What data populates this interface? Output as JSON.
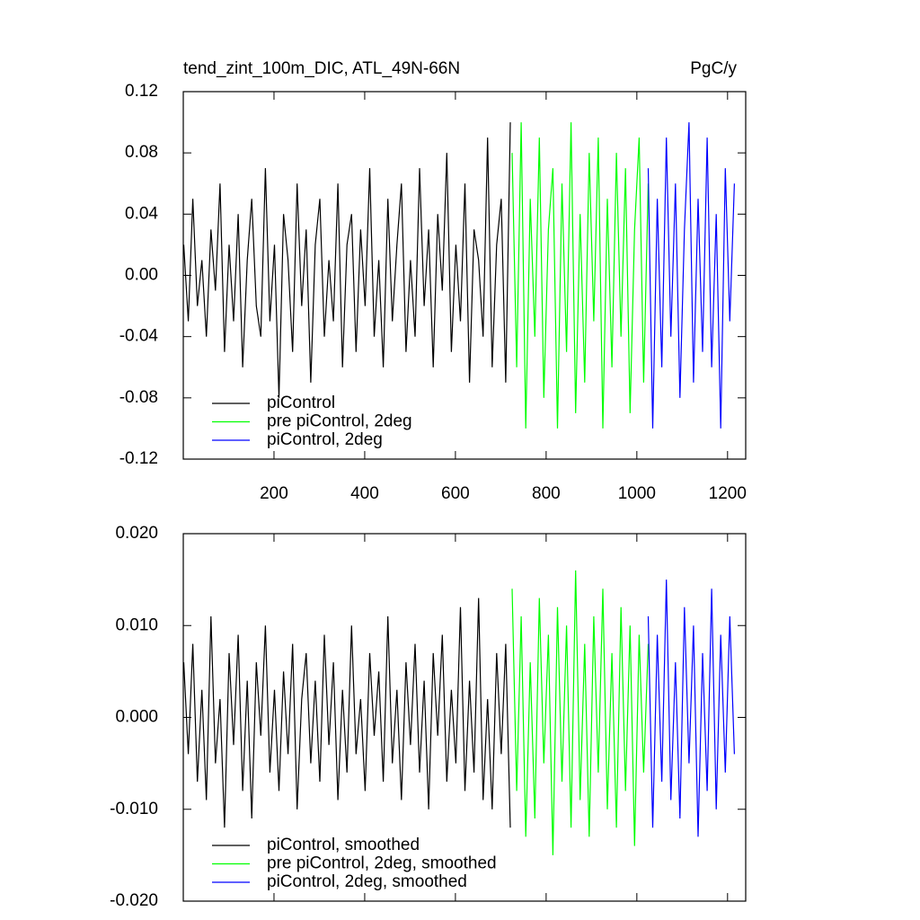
{
  "chart_data": [
    {
      "type": "line",
      "title": "tend_zint_100m_DIC, ATL_49N-66N",
      "unit_label": "PgC/y",
      "xlim": [
        0,
        1240
      ],
      "ylim": [
        -0.12,
        0.12
      ],
      "xticks": [
        200,
        400,
        600,
        800,
        1000,
        1200
      ],
      "xtick_labels": true,
      "yticks": [
        -0.12,
        -0.08,
        -0.04,
        {
          "value": 0,
          "label": "0.00"
        },
        0.04,
        0.08,
        0.12
      ],
      "legend": "lower left",
      "series": [
        {
          "name": "piControl",
          "color": "#000000",
          "x": [
            1,
            11,
            21,
            31,
            41,
            51,
            61,
            71,
            81,
            91,
            101,
            111,
            121,
            131,
            141,
            151,
            161,
            171,
            181,
            191,
            201,
            211,
            221,
            231,
            241,
            251,
            261,
            271,
            281,
            291,
            301,
            311,
            321,
            331,
            341,
            351,
            361,
            371,
            381,
            391,
            401,
            411,
            421,
            431,
            441,
            451,
            461,
            471,
            481,
            491,
            501,
            511,
            521,
            531,
            541,
            551,
            561,
            571,
            581,
            591,
            601,
            611,
            621,
            631,
            641,
            651,
            661,
            671,
            681,
            691,
            701,
            711,
            721
          ],
          "values": [
            0.02,
            -0.03,
            0.05,
            -0.02,
            0.01,
            -0.04,
            0.03,
            -0.01,
            0.06,
            -0.05,
            0.02,
            -0.03,
            0.04,
            -0.06,
            0.01,
            0.05,
            -0.02,
            -0.04,
            0.07,
            -0.03,
            0.02,
            -0.08,
            0.04,
            0.01,
            -0.05,
            0.06,
            -0.02,
            0.03,
            -0.07,
            0.02,
            0.05,
            -0.04,
            0.01,
            -0.03,
            0.06,
            -0.06,
            0.02,
            0.04,
            -0.05,
            0.03,
            -0.02,
            0.07,
            -0.04,
            0.01,
            -0.06,
            0.05,
            -0.03,
            0.02,
            0.06,
            -0.05,
            0.01,
            -0.04,
            0.07,
            -0.02,
            0.03,
            -0.06,
            0.04,
            -0.01,
            0.08,
            -0.05,
            0.02,
            -0.03,
            0.06,
            -0.07,
            0.03,
            0.01,
            -0.04,
            0.09,
            -0.06,
            0.02,
            0.05,
            -0.07,
            0.1
          ]
        },
        {
          "name": "pre piControl, 2deg",
          "color": "#00ff00",
          "x": [
            725,
            735,
            745,
            755,
            765,
            775,
            785,
            795,
            805,
            815,
            825,
            835,
            845,
            855,
            865,
            875,
            885,
            895,
            905,
            915,
            925,
            935,
            945,
            955,
            965,
            975,
            985,
            995,
            1005,
            1015,
            1025
          ],
          "values": [
            0.08,
            -0.06,
            0.1,
            -0.1,
            0.05,
            -0.04,
            0.09,
            -0.08,
            0.03,
            0.07,
            -0.1,
            0.06,
            -0.05,
            0.1,
            -0.09,
            0.04,
            -0.07,
            0.08,
            -0.03,
            0.09,
            -0.1,
            0.05,
            -0.06,
            0.08,
            -0.04,
            0.07,
            -0.09,
            0.03,
            0.09,
            -0.07,
            0.06
          ]
        },
        {
          "name": "piControl, 2deg",
          "color": "#0000ff",
          "x": [
            1025,
            1035,
            1045,
            1055,
            1065,
            1075,
            1085,
            1095,
            1105,
            1115,
            1125,
            1135,
            1145,
            1155,
            1165,
            1175,
            1185,
            1195,
            1205,
            1215
          ],
          "values": [
            0.07,
            -0.1,
            0.05,
            -0.06,
            0.09,
            -0.04,
            0.06,
            -0.08,
            0.03,
            0.1,
            -0.07,
            0.05,
            -0.05,
            0.09,
            -0.06,
            0.04,
            -0.1,
            0.07,
            -0.03,
            0.06
          ]
        }
      ]
    },
    {
      "type": "line",
      "xlim": [
        0,
        1240
      ],
      "ylim": [
        -0.02,
        0.02
      ],
      "xticks": [
        200,
        400,
        600,
        800,
        1000,
        1200
      ],
      "xtick_labels": false,
      "yticks": [
        {
          "value": -0.02,
          "label": "-0.020"
        },
        {
          "value": -0.01,
          "label": "-0.010"
        },
        {
          "value": 0,
          "label": "0.000"
        },
        {
          "value": 0.01,
          "label": "0.010"
        },
        {
          "value": 0.02,
          "label": "0.020"
        }
      ],
      "legend": "lower left",
      "series": [
        {
          "name": "piControl, smoothed",
          "color": "#000000",
          "x": [
            1,
            11,
            21,
            31,
            41,
            51,
            61,
            71,
            81,
            91,
            101,
            111,
            121,
            131,
            141,
            151,
            161,
            171,
            181,
            191,
            201,
            211,
            221,
            231,
            241,
            251,
            261,
            271,
            281,
            291,
            301,
            311,
            321,
            331,
            341,
            351,
            361,
            371,
            381,
            391,
            401,
            411,
            421,
            431,
            441,
            451,
            461,
            471,
            481,
            491,
            501,
            511,
            521,
            531,
            541,
            551,
            561,
            571,
            581,
            591,
            601,
            611,
            621,
            631,
            641,
            651,
            661,
            671,
            681,
            691,
            701,
            711,
            721
          ],
          "values": [
            0.006,
            -0.004,
            0.008,
            -0.007,
            0.003,
            -0.009,
            0.011,
            -0.005,
            0.002,
            -0.012,
            0.007,
            -0.003,
            0.009,
            -0.008,
            0.004,
            -0.011,
            0.006,
            -0.002,
            0.01,
            -0.006,
            0.003,
            -0.008,
            0.005,
            -0.004,
            0.008,
            -0.01,
            0.002,
            0.007,
            -0.005,
            0.004,
            -0.007,
            0.009,
            -0.003,
            0.006,
            -0.009,
            0.003,
            -0.006,
            0.01,
            -0.004,
            0.002,
            -0.008,
            0.007,
            -0.002,
            0.005,
            -0.007,
            0.011,
            -0.005,
            0.003,
            -0.009,
            0.006,
            -0.003,
            0.008,
            -0.006,
            0.004,
            -0.01,
            0.007,
            -0.002,
            0.009,
            -0.007,
            0.003,
            -0.005,
            0.012,
            -0.008,
            0.004,
            -0.006,
            0.013,
            -0.009,
            0.002,
            -0.01,
            0.007,
            -0.004,
            0.008,
            -0.012
          ]
        },
        {
          "name": "pre piControl, 2deg, smoothed",
          "color": "#00ff00",
          "x": [
            725,
            735,
            745,
            755,
            765,
            775,
            785,
            795,
            805,
            815,
            825,
            835,
            845,
            855,
            865,
            875,
            885,
            895,
            905,
            915,
            925,
            935,
            945,
            955,
            965,
            975,
            985,
            995,
            1005,
            1015,
            1025
          ],
          "values": [
            0.014,
            -0.008,
            0.011,
            -0.013,
            0.006,
            -0.011,
            0.013,
            -0.005,
            0.009,
            -0.015,
            0.012,
            -0.007,
            0.01,
            -0.012,
            0.016,
            -0.009,
            0.008,
            -0.013,
            0.011,
            -0.006,
            0.014,
            -0.01,
            0.007,
            -0.012,
            0.012,
            -0.008,
            0.01,
            -0.014,
            0.009,
            -0.006,
            0.008
          ]
        },
        {
          "name": "piControl, 2deg, smoothed",
          "color": "#0000ff",
          "x": [
            1025,
            1035,
            1045,
            1055,
            1065,
            1075,
            1085,
            1095,
            1105,
            1115,
            1125,
            1135,
            1145,
            1155,
            1165,
            1175,
            1185,
            1195,
            1205,
            1215
          ],
          "values": [
            0.011,
            -0.012,
            0.009,
            -0.007,
            0.015,
            -0.009,
            0.006,
            -0.011,
            0.012,
            -0.005,
            0.01,
            -0.013,
            0.007,
            -0.008,
            0.014,
            -0.01,
            0.009,
            -0.006,
            0.011,
            -0.004
          ]
        }
      ]
    }
  ]
}
